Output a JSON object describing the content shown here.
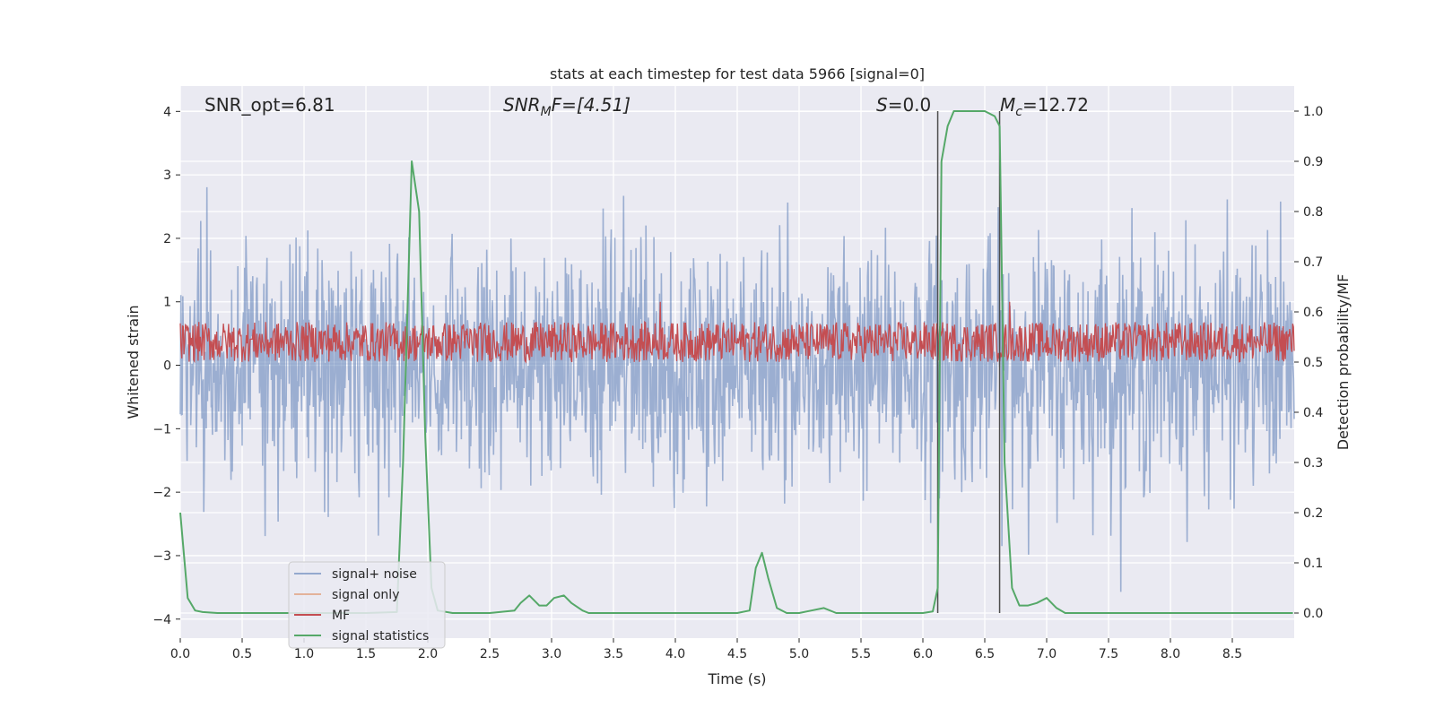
{
  "chart_data": {
    "type": "line",
    "title": "stats at each timestep for test data 5966 [signal=0]",
    "xlabel": "Time (s)",
    "ylabel": "Whitened strain",
    "ylabel_right": "Detection probability/MF",
    "xlim": [
      0,
      9
    ],
    "ylim": [
      -4.3,
      4.4
    ],
    "ylim_right": [
      -0.05,
      1.05
    ],
    "x_ticks": [
      0.0,
      0.5,
      1.0,
      1.5,
      2.0,
      2.5,
      3.0,
      3.5,
      4.0,
      4.5,
      5.0,
      5.5,
      6.0,
      6.5,
      7.0,
      7.5,
      8.0,
      8.5
    ],
    "x_tick_labels": [
      "0.0",
      "0.5",
      "1.0",
      "1.5",
      "2.0",
      "2.5",
      "3.0",
      "3.5",
      "4.0",
      "4.5",
      "5.0",
      "5.5",
      "6.0",
      "6.5",
      "7.0",
      "7.5",
      "8.0",
      "8.5"
    ],
    "y_ticks": [
      4,
      3,
      2,
      1,
      0,
      -1,
      -2,
      -3,
      -4
    ],
    "y_tick_labels": [
      "4",
      "3",
      "2",
      "1",
      "0",
      "−1",
      "−2",
      "−3",
      "−4"
    ],
    "y_ticks_right": [
      1.0,
      0.9,
      0.8,
      0.7,
      0.6,
      0.5,
      0.4,
      0.3,
      0.2,
      0.1,
      0.0
    ],
    "y_tick_labels_right": [
      "1.0",
      "0.9",
      "0.8",
      "0.7",
      "0.6",
      "0.5",
      "0.4",
      "0.3",
      "0.2",
      "0.1",
      "0.0"
    ],
    "grid": true,
    "legend_position": "lower-left",
    "annotations": {
      "snr_opt": "SNR_opt=6.81",
      "snr_mf_sym": "SNR",
      "snr_mf_sub": "M",
      "snr_mf_rest": "F=[4.51]",
      "s_sym": "S",
      "s_rest": "=0.0",
      "mc_sym": "M",
      "mc_sub": "c",
      "mc_rest": "=12.72"
    },
    "vertical_lines": [
      {
        "x": 6.12,
        "y_range": [
          0.0,
          1.0
        ]
      },
      {
        "x": 6.62,
        "y_range": [
          0.0,
          1.0
        ]
      }
    ],
    "series": [
      {
        "name": "signal+ noise",
        "color": "#4c72b0",
        "axis": "left",
        "style": "noise",
        "baseline_std": 0.95,
        "typical_peaks": [
          2.5,
          -2.5
        ],
        "max_peak": 4.0,
        "min_peak": -3.8
      },
      {
        "name": "signal only",
        "color": "#dd8452",
        "axis": "left",
        "style": "empty",
        "values": []
      },
      {
        "name": "MF",
        "color": "#c44e52",
        "axis": "right",
        "style": "band",
        "band": [
          0.5,
          0.58
        ],
        "spikes": [
          {
            "x": 3.88,
            "y": 0.62
          },
          {
            "x": 6.7,
            "y": 0.62
          }
        ]
      },
      {
        "name": "signal statistics",
        "color": "#55a868",
        "axis": "right",
        "x": [
          0.0,
          0.06,
          0.12,
          0.18,
          0.3,
          0.6,
          1.0,
          1.5,
          1.75,
          1.8,
          1.87,
          1.93,
          1.98,
          2.03,
          2.08,
          2.2,
          2.5,
          2.7,
          2.75,
          2.82,
          2.9,
          2.96,
          3.02,
          3.1,
          3.16,
          3.25,
          3.3,
          3.5,
          4.0,
          4.5,
          4.6,
          4.65,
          4.7,
          4.75,
          4.82,
          4.9,
          5.0,
          5.1,
          5.2,
          5.3,
          5.5,
          6.0,
          6.08,
          6.12,
          6.15,
          6.2,
          6.25,
          6.5,
          6.58,
          6.62,
          6.66,
          6.72,
          6.78,
          6.85,
          6.92,
          7.0,
          7.08,
          7.15,
          7.5,
          8.0,
          8.5,
          8.99
        ],
        "values": [
          0.2,
          0.03,
          0.005,
          0.002,
          0.0,
          0.0,
          0.0,
          0.0,
          0.002,
          0.3,
          0.9,
          0.8,
          0.35,
          0.05,
          0.005,
          0.0,
          0.0,
          0.005,
          0.02,
          0.035,
          0.015,
          0.015,
          0.03,
          0.035,
          0.02,
          0.005,
          0.0,
          0.0,
          0.0,
          0.0,
          0.005,
          0.09,
          0.12,
          0.07,
          0.01,
          0.0,
          0.0,
          0.005,
          0.01,
          0.0,
          0.0,
          0.0,
          0.003,
          0.05,
          0.9,
          0.97,
          1.0,
          1.0,
          0.99,
          0.97,
          0.3,
          0.05,
          0.015,
          0.015,
          0.02,
          0.03,
          0.01,
          0.0,
          0.0,
          0.0,
          0.0,
          0.0
        ]
      }
    ]
  }
}
